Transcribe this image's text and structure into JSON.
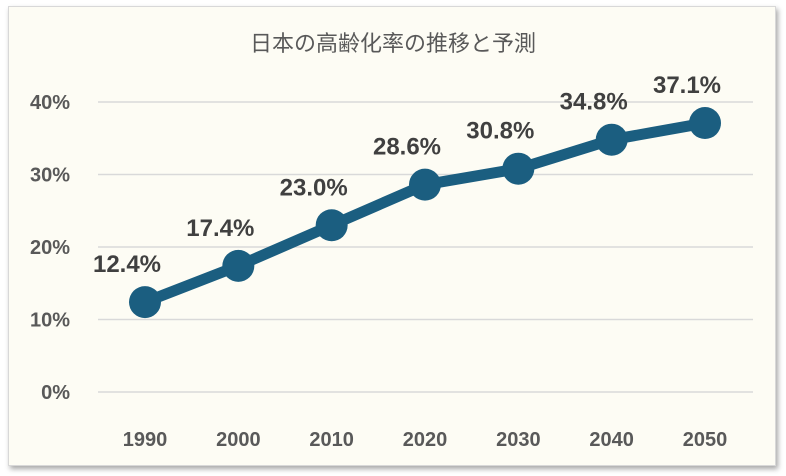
{
  "chart_data": {
    "type": "line",
    "title": "日本の高齢化率の推移と予測",
    "categories": [
      "1990",
      "2000",
      "2010",
      "2020",
      "2030",
      "2040",
      "2050"
    ],
    "values": [
      12.4,
      17.4,
      23.0,
      28.6,
      30.8,
      34.8,
      37.1
    ],
    "data_labels": [
      "12.4%",
      "17.4%",
      "23.0%",
      "28.6%",
      "30.8%",
      "34.8%",
      "37.1%"
    ],
    "y_ticks": [
      "0%",
      "10%",
      "20%",
      "30%",
      "40%"
    ],
    "ylim": [
      0,
      40
    ],
    "unit": "%",
    "grid": true,
    "legend": "none",
    "xlabel": "",
    "ylabel": "",
    "colors": {
      "line": "#1b5e80",
      "background": "#fdfcf4",
      "grid": "#d9d9d9"
    }
  }
}
